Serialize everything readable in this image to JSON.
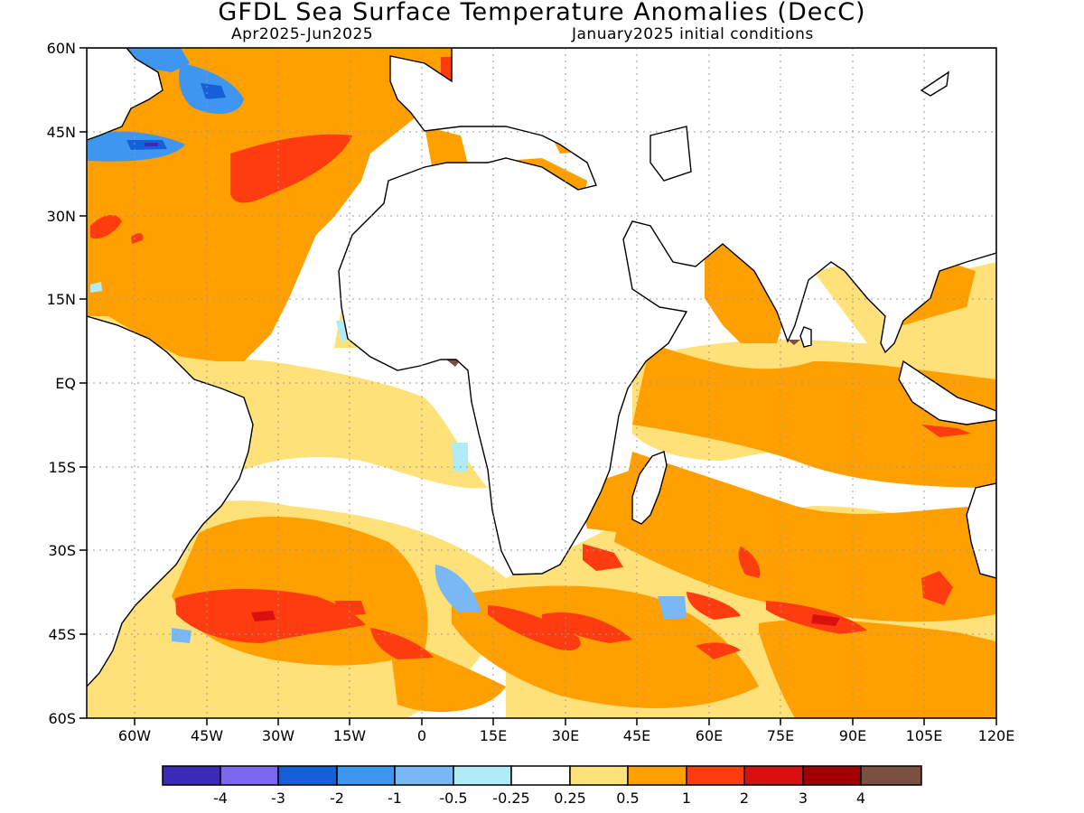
{
  "title": "GFDL Sea Surface Temperature Anomalies (DecC)",
  "subtitle_left": "Apr2025-Jun2025",
  "subtitle_right": "January2025 initial conditions",
  "lat_labels": [
    "60N",
    "45N",
    "30N",
    "15N",
    "EQ",
    "15S",
    "30S",
    "45S",
    "60S"
  ],
  "lon_labels": [
    "60W",
    "45W",
    "30W",
    "15W",
    "0",
    "15E",
    "30E",
    "45E",
    "60E",
    "75E",
    "90E",
    "105E",
    "120E"
  ],
  "colorbar": {
    "colors": [
      "#3b2bb8",
      "#7b68ee",
      "#1560d8",
      "#3f96f0",
      "#7ab8f5",
      "#b0ecf7",
      "#ffffff",
      "#ffe17a",
      "#ffa000",
      "#ff3c10",
      "#d81010",
      "#a00000",
      "#7a5040"
    ],
    "labels": [
      "-4",
      "-3",
      "-2",
      "-1",
      "-0.5",
      "-0.25",
      "0.25",
      "0.5",
      "1",
      "2",
      "3",
      "4"
    ]
  }
}
